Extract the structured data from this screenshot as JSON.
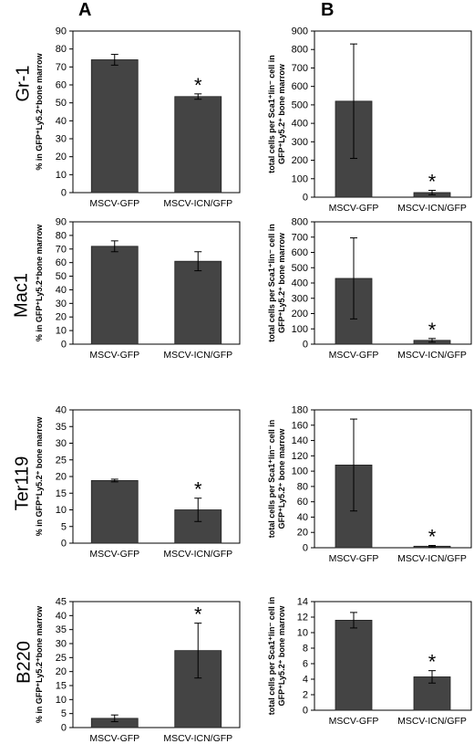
{
  "panels": {
    "a": "A",
    "b": "B"
  },
  "rows": [
    {
      "label": "Gr-1"
    },
    {
      "label": "Mac1"
    },
    {
      "label": "Ter119"
    },
    {
      "label": "B220"
    }
  ],
  "chart_data": [
    {
      "id": "A-Gr1",
      "type": "bar",
      "categories": [
        "MSCV-GFP",
        "MSCV-ICN/GFP"
      ],
      "values": [
        74,
        53.5
      ],
      "errors": [
        3,
        1.5
      ],
      "significant": [
        false,
        true
      ],
      "ylabel": [
        "% in GFP⁺Ly5.2⁺bone marrow"
      ],
      "ylim": [
        0,
        90
      ],
      "yticks": [
        "0",
        "10",
        "20",
        "30",
        "40",
        "50",
        "60",
        "70",
        "80",
        "90"
      ]
    },
    {
      "id": "B-Gr1",
      "type": "bar",
      "categories": [
        "MSCV-GFP",
        "MSCV-ICN/GFP"
      ],
      "values": [
        520,
        25
      ],
      "errors": [
        310,
        12
      ],
      "significant": [
        false,
        true
      ],
      "ylabel": [
        "total cells per Sca1⁺lin⁻ cell in",
        "GFP⁺Ly5.2⁺ bone marrow"
      ],
      "ylim": [
        0,
        900
      ],
      "yticks": [
        "0",
        "100",
        "200",
        "300",
        "400",
        "500",
        "600",
        "700",
        "800",
        "900"
      ]
    },
    {
      "id": "A-Mac1",
      "type": "bar",
      "categories": [
        "MSCV-GFP",
        "MSCV-ICN/GFP"
      ],
      "values": [
        72,
        61
      ],
      "errors": [
        4,
        7
      ],
      "significant": [
        false,
        false
      ],
      "ylabel": [
        "% in GFP⁺Ly5.2⁺bone marrow"
      ],
      "ylim": [
        0,
        90
      ],
      "yticks": [
        "0",
        "10",
        "20",
        "30",
        "40",
        "50",
        "60",
        "70",
        "80",
        "90"
      ]
    },
    {
      "id": "B-Mac1",
      "type": "bar",
      "categories": [
        "MSCV-GFP",
        "MSCV-ICN/GFP"
      ],
      "values": [
        430,
        25
      ],
      "errors": [
        265,
        12
      ],
      "significant": [
        false,
        true
      ],
      "ylabel": [
        "total cells per Sca1⁺lin⁻ cell in",
        "GFP⁺Ly5.2⁺ bone marrow"
      ],
      "ylim": [
        0,
        800
      ],
      "yticks": [
        "0",
        "100",
        "200",
        "300",
        "400",
        "500",
        "600",
        "700",
        "800"
      ]
    },
    {
      "id": "A-Ter119",
      "type": "bar",
      "categories": [
        "MSCV-GFP",
        "MSCV-ICN/GFP"
      ],
      "values": [
        18.8,
        10
      ],
      "errors": [
        0.4,
        3.5
      ],
      "significant": [
        false,
        true
      ],
      "ylabel": [
        "% in GFP⁺Ly5.2⁺ bone marrow"
      ],
      "ylim": [
        0,
        40
      ],
      "yticks": [
        "0",
        "5",
        "10",
        "15",
        "20",
        "25",
        "30",
        "35",
        "40"
      ]
    },
    {
      "id": "B-Ter119",
      "type": "bar",
      "categories": [
        "MSCV-GFP",
        "MSCV-ICN/GFP"
      ],
      "values": [
        108,
        2
      ],
      "errors": [
        60,
        1
      ],
      "significant": [
        false,
        true
      ],
      "ylabel": [
        "total cells per Sca1⁺lin⁻ cell in",
        "GFP⁺Ly5.2⁺ bone marrow"
      ],
      "ylim": [
        0,
        180
      ],
      "yticks": [
        "0",
        "20",
        "40",
        "60",
        "80",
        "100",
        "120",
        "140",
        "160",
        "180"
      ]
    },
    {
      "id": "A-B220",
      "type": "bar",
      "categories": [
        "MSCV-GFP",
        "MSCV-ICN/GFP"
      ],
      "values": [
        3.3,
        27.5
      ],
      "errors": [
        1.2,
        9.8
      ],
      "significant": [
        false,
        true
      ],
      "ylabel": [
        "% in GFP⁺Ly5.2⁺bone marrow"
      ],
      "ylim": [
        0,
        45
      ],
      "yticks": [
        "0",
        "5",
        "10",
        "15",
        "20",
        "25",
        "30",
        "35",
        "40",
        "45"
      ]
    },
    {
      "id": "B-B220",
      "type": "bar",
      "categories": [
        "MSCV-GFP",
        "MSCV-ICN/GFP"
      ],
      "values": [
        11.6,
        4.3
      ],
      "errors": [
        1,
        0.8
      ],
      "significant": [
        false,
        true
      ],
      "ylabel": [
        "total cells per Sca1⁺lin⁻ cell in",
        "GFP⁺Ly5.2⁺ bone marrow"
      ],
      "ylim": [
        0,
        14
      ],
      "yticks": [
        "0",
        "2",
        "4",
        "6",
        "8",
        "10",
        "12",
        "14"
      ]
    }
  ],
  "annotations": {
    "significance_marker": "*"
  },
  "colors": {
    "bar_fill": "#444444",
    "axis": "#000000"
  }
}
